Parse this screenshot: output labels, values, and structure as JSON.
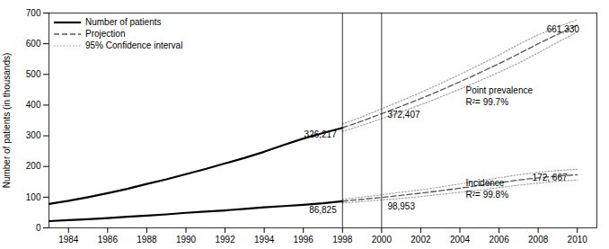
{
  "chart_data": {
    "type": "line",
    "ylabel": "Number of patients (in thousands)",
    "xlim": [
      1983,
      2011
    ],
    "ylim": [
      0,
      700
    ],
    "xticks": [
      1984,
      1986,
      1988,
      1990,
      1992,
      1994,
      1996,
      1998,
      2000,
      2002,
      2004,
      2006,
      2008,
      2010
    ],
    "yticks": [
      0,
      100,
      200,
      300,
      400,
      500,
      600,
      700
    ],
    "grid": false,
    "legend": "upper left",
    "x": [
      1983,
      1984,
      1985,
      1986,
      1987,
      1988,
      1989,
      1990,
      1991,
      1992,
      1993,
      1994,
      1995,
      1996,
      1997,
      1998,
      1999,
      2000,
      2001,
      2002,
      2003,
      2004,
      2005,
      2006,
      2007,
      2008,
      2009,
      2010
    ],
    "series": [
      {
        "name": "Number of patients",
        "color": "#000000",
        "line_style": "solid",
        "values": [
          78,
          88,
          100,
          113,
          127,
          143,
          158,
          175,
          192,
          210,
          228,
          248,
          270,
          291,
          309,
          326,
          null,
          null,
          null,
          null,
          null,
          null,
          null,
          null,
          null,
          null,
          null,
          null
        ]
      },
      {
        "name": "Projection",
        "color": "#555555",
        "line_style": "dashed",
        "values": [
          null,
          null,
          null,
          null,
          null,
          null,
          null,
          null,
          null,
          null,
          null,
          null,
          null,
          null,
          null,
          326,
          348,
          372,
          396,
          421,
          448,
          476,
          505,
          535,
          567,
          600,
          631,
          661
        ]
      },
      {
        "name": "95% Confidence interval",
        "color": "#999999",
        "line_style": "dotted",
        "values": [
          null,
          null,
          null,
          null,
          null,
          null,
          null,
          null,
          null,
          null,
          null,
          null,
          null,
          null,
          null,
          338,
          362,
          388,
          414,
          441,
          470,
          500,
          531,
          563,
          598,
          629,
          655,
          678
        ]
      },
      {
        "name": "95% Confidence interval",
        "color": "#999999",
        "line_style": "dotted",
        "values": [
          null,
          null,
          null,
          null,
          null,
          null,
          null,
          null,
          null,
          null,
          null,
          null,
          null,
          null,
          null,
          314,
          334,
          356,
          378,
          401,
          426,
          452,
          479,
          507,
          537,
          570,
          605,
          638
        ]
      },
      {
        "name": "Number of patients",
        "color": "#000000",
        "line_style": "solid",
        "values": [
          22,
          25,
          28,
          32,
          36,
          40,
          44,
          49,
          53,
          57,
          62,
          67,
          71,
          75,
          80,
          87,
          null,
          null,
          null,
          null,
          null,
          null,
          null,
          null,
          null,
          null,
          null,
          null
        ]
      },
      {
        "name": "Projection",
        "color": "#555555",
        "line_style": "dashed",
        "values": [
          null,
          null,
          null,
          null,
          null,
          null,
          null,
          null,
          null,
          null,
          null,
          null,
          null,
          null,
          null,
          87,
          93,
          99,
          106,
          113,
          121,
          129,
          138,
          147,
          156,
          163,
          169,
          173
        ]
      },
      {
        "name": "95% Confidence interval",
        "color": "#999999",
        "line_style": "dotted",
        "values": [
          null,
          null,
          null,
          null,
          null,
          null,
          null,
          null,
          null,
          null,
          null,
          null,
          null,
          null,
          null,
          93,
          100,
          108,
          116,
          124,
          133,
          143,
          153,
          163,
          173,
          181,
          187,
          191
        ]
      },
      {
        "name": "95% Confidence interval",
        "color": "#999999",
        "line_style": "dotted",
        "values": [
          null,
          null,
          null,
          null,
          null,
          null,
          null,
          null,
          null,
          null,
          null,
          null,
          null,
          null,
          null,
          81,
          86,
          91,
          96,
          102,
          109,
          116,
          123,
          131,
          139,
          146,
          152,
          156
        ]
      }
    ],
    "vlines": [
      1998,
      2000
    ],
    "annotations": [
      {
        "text": "326,217",
        "x": 1997.7,
        "y": 295
      },
      {
        "text": "86,825",
        "x": 1997.7,
        "y": 74
      },
      {
        "text": "372,407",
        "x": 2000.3,
        "y": 358
      },
      {
        "text": "98,953",
        "x": 2000.3,
        "y": 86
      },
      {
        "text": "661,330",
        "x": 2010.1,
        "y": 638
      },
      {
        "text": "172, 667",
        "x": 2007.7,
        "y": 155
      },
      {
        "text": "Point prevalence\nR²= 99.7%",
        "x": 2004.3,
        "y": 430
      },
      {
        "text": "Incidence\nR²= 99.8%",
        "x": 2004.3,
        "y": 130
      }
    ]
  }
}
